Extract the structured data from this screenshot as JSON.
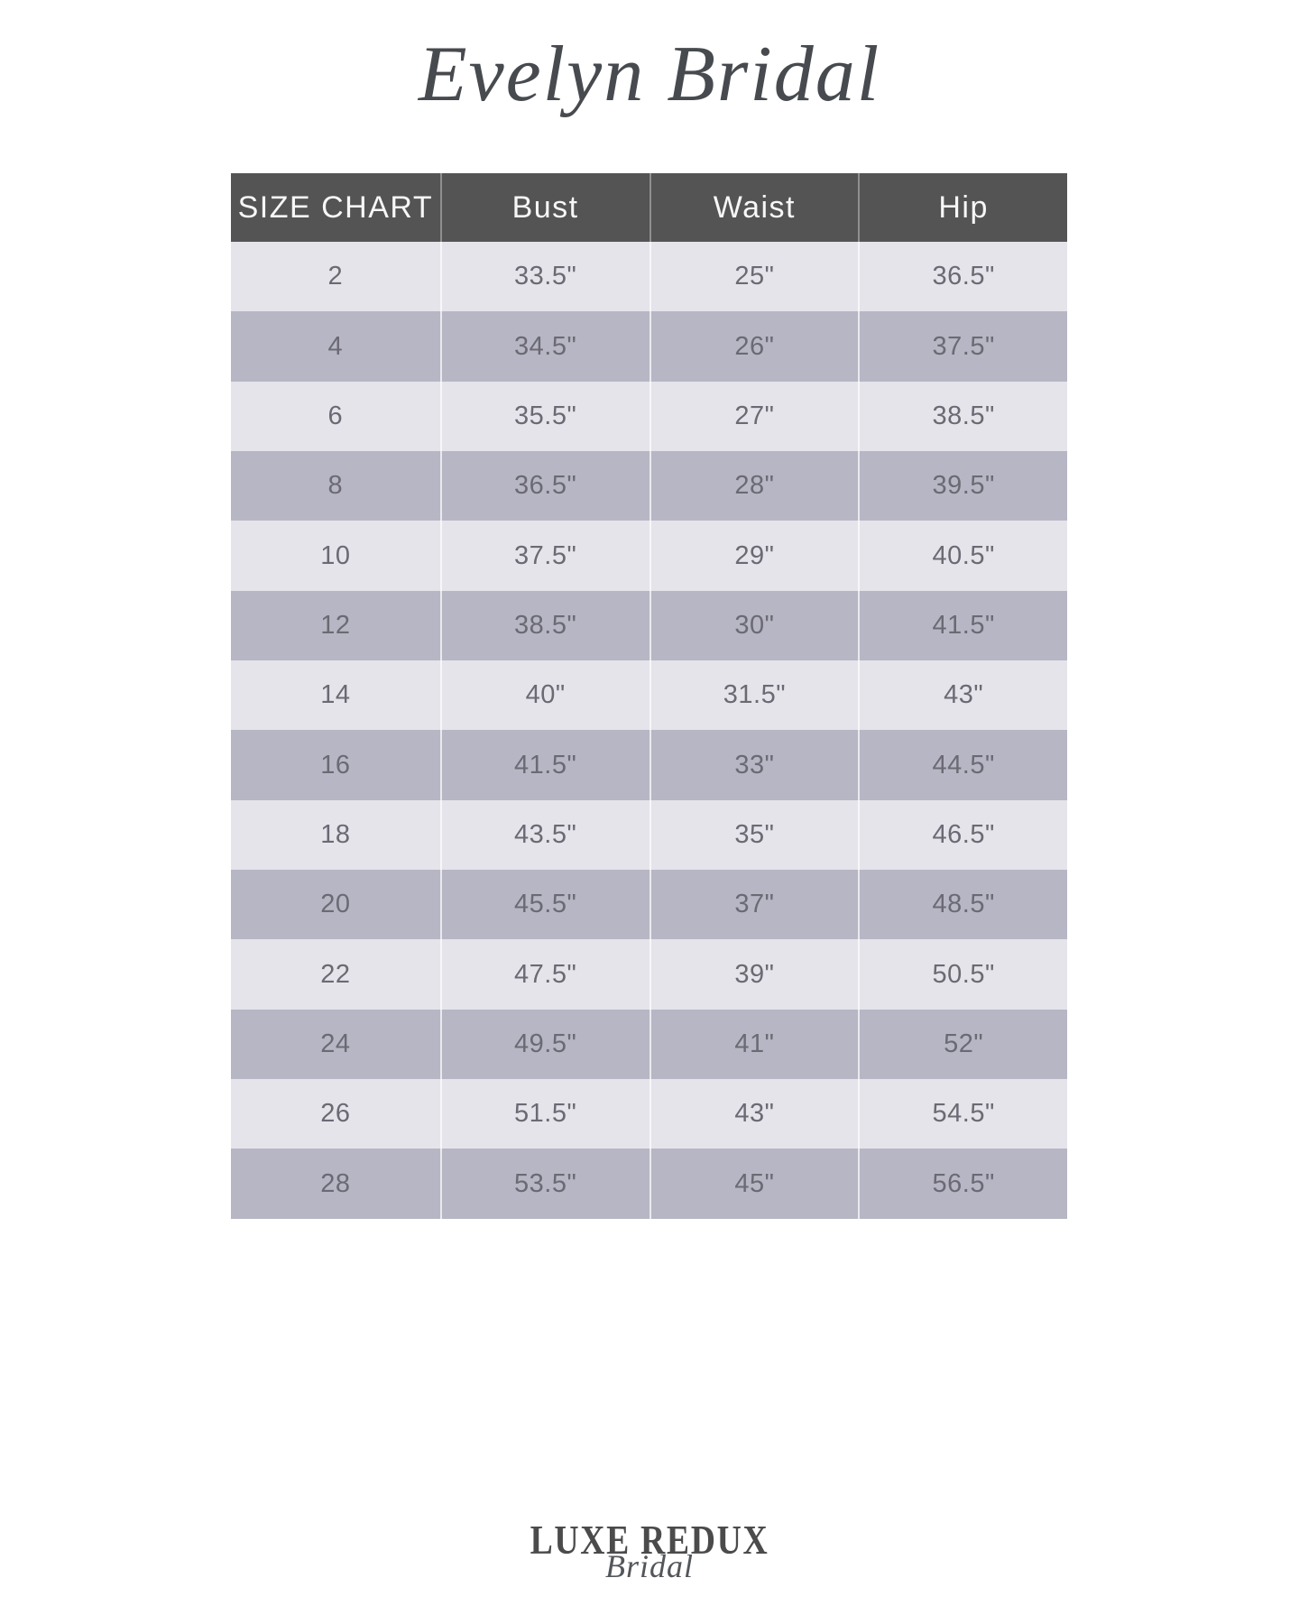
{
  "brand": {
    "title": "Evelyn Bridal"
  },
  "size_chart": {
    "header": {
      "label": "SIZE CHART",
      "columns": [
        "Bust",
        "Waist",
        "Hip"
      ]
    },
    "rows": [
      {
        "size": "2",
        "bust": "33.5\"",
        "waist": "25\"",
        "hip": "36.5\""
      },
      {
        "size": "4",
        "bust": "34.5\"",
        "waist": "26\"",
        "hip": "37.5\""
      },
      {
        "size": "6",
        "bust": "35.5\"",
        "waist": "27\"",
        "hip": "38.5\""
      },
      {
        "size": "8",
        "bust": "36.5\"",
        "waist": "28\"",
        "hip": "39.5\""
      },
      {
        "size": "10",
        "bust": "37.5\"",
        "waist": "29\"",
        "hip": "40.5\""
      },
      {
        "size": "12",
        "bust": "38.5\"",
        "waist": "30\"",
        "hip": "41.5\""
      },
      {
        "size": "14",
        "bust": "40\"",
        "waist": "31.5\"",
        "hip": "43\""
      },
      {
        "size": "16",
        "bust": "41.5\"",
        "waist": "33\"",
        "hip": "44.5\""
      },
      {
        "size": "18",
        "bust": "43.5\"",
        "waist": "35\"",
        "hip": "46.5\""
      },
      {
        "size": "20",
        "bust": "45.5\"",
        "waist": "37\"",
        "hip": "48.5\""
      },
      {
        "size": "22",
        "bust": "47.5\"",
        "waist": "39\"",
        "hip": "50.5\""
      },
      {
        "size": "24",
        "bust": "49.5\"",
        "waist": "41\"",
        "hip": "52\""
      },
      {
        "size": "26",
        "bust": "51.5\"",
        "waist": "43\"",
        "hip": "54.5\""
      },
      {
        "size": "28",
        "bust": "53.5\"",
        "waist": "45\"",
        "hip": "56.5\""
      }
    ],
    "colors": {
      "header_bg": "#545454",
      "header_text": "#f7f7f7",
      "row_light": "#e5e4eb",
      "row_dark": "#b7b6c4",
      "cell_text": "#6b6a74",
      "title_color": "#474a4e",
      "logo_color": "#4b4b4b"
    }
  },
  "footer": {
    "logo_primary": "LUXE REDUX",
    "logo_secondary": "Bridal"
  }
}
